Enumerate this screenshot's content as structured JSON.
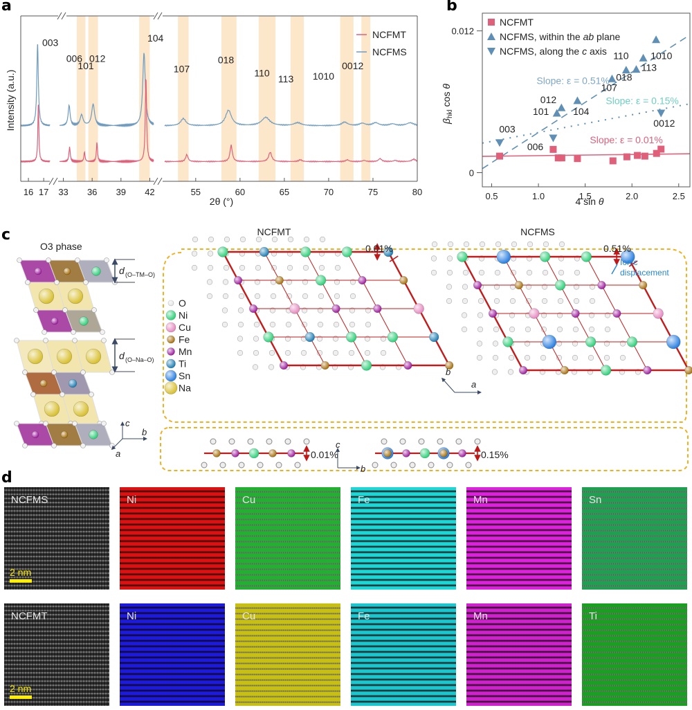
{
  "panels": {
    "a": {
      "letter": "a"
    },
    "b": {
      "letter": "b"
    },
    "c": {
      "letter": "c"
    },
    "d": {
      "letter": "d"
    }
  },
  "chart_data": [
    {
      "id": "a",
      "type": "line",
      "title": "",
      "xlabel": "2θ (°)",
      "ylabel": "Intensity (a.u.)",
      "x_axis_breaks": [
        [
          17.4,
          32.6
        ],
        [
          42.4,
          51.5
        ]
      ],
      "x_segments": [
        {
          "range": [
            15.5,
            17.4
          ],
          "ticks": [
            16,
            17
          ]
        },
        {
          "range": [
            32.6,
            42.4
          ],
          "ticks": [
            33,
            36,
            39,
            42
          ]
        },
        {
          "range": [
            51.5,
            80
          ],
          "ticks": [
            55,
            60,
            65,
            70,
            75,
            80
          ]
        }
      ],
      "legend": {
        "position": "top-right",
        "entries": [
          {
            "name": "NCFMT",
            "color": "#e0607a"
          },
          {
            "name": "NCFMS",
            "color": "#6f9bbf"
          }
        ]
      },
      "highlight_bands": [
        {
          "from": 34.4,
          "to": 35.3
        },
        {
          "from": 35.6,
          "to": 36.6
        },
        {
          "from": 40.9,
          "to": 42.0
        },
        {
          "from": 53.0,
          "to": 54.2
        },
        {
          "from": 57.9,
          "to": 59.6
        },
        {
          "from": 62.1,
          "to": 64.0
        },
        {
          "from": 65.7,
          "to": 67.2
        },
        {
          "from": 71.3,
          "to": 72.8
        },
        {
          "from": 73.7,
          "to": 74.7
        }
      ],
      "series": [
        {
          "name": "NCFMS",
          "color": "#6f9bbf",
          "baseline": 0.62,
          "peaks": [
            {
              "x": 16.6,
              "h": 0.68,
              "w": 0.06
            },
            {
              "x": 33.6,
              "h": 0.17,
              "w": 0.12
            },
            {
              "x": 34.9,
              "h": 0.09,
              "w": 0.18
            },
            {
              "x": 36.1,
              "h": 0.18,
              "w": 0.18
            },
            {
              "x": 41.4,
              "h": 0.61,
              "w": 0.16
            },
            {
              "x": 53.6,
              "h": 0.06,
              "w": 0.35
            },
            {
              "x": 58.7,
              "h": 0.13,
              "w": 0.4
            },
            {
              "x": 62.9,
              "h": 0.07,
              "w": 0.55
            },
            {
              "x": 66.5,
              "h": 0.025,
              "w": 0.5
            },
            {
              "x": 71.8,
              "h": 0.03,
              "w": 0.4
            },
            {
              "x": 73.8,
              "h": 0.02,
              "w": 0.4
            },
            {
              "x": 75.3,
              "h": 0.025,
              "w": 0.4
            },
            {
              "x": 77.2,
              "h": 0.015,
              "w": 0.4
            },
            {
              "x": 79.2,
              "h": 0.025,
              "w": 0.5
            }
          ]
        },
        {
          "name": "NCFMT",
          "color": "#e0607a",
          "baseline": 0.24,
          "peaks": [
            {
              "x": 16.65,
              "h": 0.48,
              "w": 0.04
            },
            {
              "x": 33.65,
              "h": 0.12,
              "w": 0.08
            },
            {
              "x": 35.2,
              "h": 0.08,
              "w": 0.07
            },
            {
              "x": 36.5,
              "h": 0.16,
              "w": 0.07
            },
            {
              "x": 41.6,
              "h": 0.71,
              "w": 0.08
            },
            {
              "x": 54.0,
              "h": 0.06,
              "w": 0.15
            },
            {
              "x": 59.0,
              "h": 0.14,
              "w": 0.15
            },
            {
              "x": 63.4,
              "h": 0.08,
              "w": 0.2
            },
            {
              "x": 66.8,
              "h": 0.015,
              "w": 0.2
            },
            {
              "x": 72.1,
              "h": 0.015,
              "w": 0.2
            },
            {
              "x": 74.0,
              "h": 0.01,
              "w": 0.2
            },
            {
              "x": 75.8,
              "h": 0.025,
              "w": 0.2
            },
            {
              "x": 77.5,
              "h": 0.01,
              "w": 0.2
            },
            {
              "x": 79.6,
              "h": 0.02,
              "w": 0.25
            }
          ]
        }
      ],
      "peak_labels": [
        {
          "text": "003",
          "x": 16.9,
          "y": 0.93
        },
        {
          "text": "006",
          "x": 33.3,
          "y": 0.82
        },
        {
          "text": "101",
          "x": 34.5,
          "y": 0.77
        },
        {
          "text": "012",
          "x": 35.7,
          "y": 0.82
        },
        {
          "text": "104",
          "x": 41.75,
          "y": 0.96
        },
        {
          "text": "107",
          "x": 52.5,
          "y": 0.75
        },
        {
          "text": "018",
          "x": 57.5,
          "y": 0.81
        },
        {
          "text": "110",
          "x": 61.6,
          "y": 0.72
        },
        {
          "text": "113",
          "x": 64.3,
          "y": 0.68
        },
        {
          "text": "1010",
          "x": 68.2,
          "y": 0.7
        },
        {
          "text": "0012",
          "x": 71.5,
          "y": 0.77
        }
      ],
      "ylim": [
        0,
        1
      ]
    },
    {
      "id": "b",
      "type": "scatter",
      "title": "",
      "xlabel": "4 sin θ",
      "ylabel": "β_hkl cos θ",
      "xlim": [
        0.4,
        2.62
      ],
      "ylim": [
        -0.0012,
        0.0135
      ],
      "xticks": [
        0.5,
        1.0,
        1.5,
        2.0,
        2.5
      ],
      "xtick_labels": [
        "0.5",
        "1.0",
        "1.5",
        "2.0",
        "2.5"
      ],
      "yticks": [
        0,
        0.012
      ],
      "ytick_labels": [
        "0",
        "0.012"
      ],
      "legend": {
        "position": "top-left",
        "entries": [
          {
            "name": "NCFMT",
            "marker": "square",
            "color": "#e0607a"
          },
          {
            "name": "NCFMS, within the ab plane",
            "marker": "triangle-up",
            "color": "#5f8fb5"
          },
          {
            "name": "NCFMS, along the c axis",
            "marker": "triangle-down",
            "color": "#5f8fb5"
          }
        ]
      },
      "series": [
        {
          "name": "NCFMT",
          "marker": "square",
          "color": "#e0607a",
          "x": [
            0.585,
            1.158,
            1.212,
            1.25,
            1.417,
            1.797,
            1.946,
            2.058,
            2.138,
            2.263,
            2.311
          ],
          "y": [
            0.0014,
            0.00197,
            0.00125,
            0.00125,
            0.00119,
            0.001,
            0.00134,
            0.00146,
            0.0014,
            0.00163,
            0.00199
          ]
        },
        {
          "name": "NCFMS, within the ab plane",
          "marker": "triangle-up",
          "color": "#5f8fb5",
          "x": [
            1.197,
            1.246,
            1.417,
            1.787,
            1.938,
            2.046,
            2.121,
            2.258
          ],
          "y": [
            0.00504,
            0.0055,
            0.0061,
            0.00795,
            0.00869,
            0.00875,
            0.00971,
            0.01126
          ],
          "labels": [
            "101",
            "012",
            "104",
            "107",
            "018",
            "113",
            "1010",
            ""
          ]
        },
        {
          "name": "NCFMS, along the c axis",
          "marker": "triangle-down",
          "color": "#5f8fb5",
          "x": [
            0.585,
            1.158,
            2.311
          ],
          "y": [
            0.00253,
            0.00293,
            0.00504
          ],
          "labels": [
            "003",
            "006",
            "0012"
          ]
        }
      ],
      "point_labels": [
        {
          "text": "003",
          "x": 0.58,
          "y": 0.0034
        },
        {
          "text": "006",
          "x": 0.88,
          "y": 0.0019
        },
        {
          "text": "101",
          "x": 0.94,
          "y": 0.0049
        },
        {
          "text": "012",
          "x": 1.02,
          "y": 0.0059
        },
        {
          "text": "104",
          "x": 1.37,
          "y": 0.0049
        },
        {
          "text": "107",
          "x": 1.67,
          "y": 0.0069
        },
        {
          "text": "018",
          "x": 1.83,
          "y": 0.0078
        },
        {
          "text": "110",
          "x": 1.8,
          "y": 0.0096
        },
        {
          "text": "113",
          "x": 2.1,
          "y": 0.0086
        },
        {
          "text": "1010",
          "x": 2.2,
          "y": 0.0096
        },
        {
          "text": "0012",
          "x": 2.23,
          "y": 0.0039
        }
      ],
      "fits": [
        {
          "name": "NCFMS ab fit",
          "style": "dashed",
          "color": "#5f8fb5",
          "slope": 0.0051,
          "intercept": -0.0017,
          "label": "Slope: ε = 0.51%",
          "label_color": "#7fa7c8",
          "label_pos": [
            0.98,
            0.0075
          ]
        },
        {
          "name": "NCFMS c fit",
          "style": "dotted",
          "color": "#5f8fb5",
          "slope": 0.0015,
          "intercept": 0.0019,
          "label": "Slope: ε = 0.15%",
          "label_color": "#6fcfc2",
          "label_pos": [
            1.72,
            0.0058
          ]
        },
        {
          "name": "NCFMT fit",
          "style": "solid",
          "color": "#e0607a",
          "slope": 0.0001,
          "intercept": 0.00134,
          "label": "Slope: ε = 0.01%",
          "label_color": "#e0607a",
          "label_pos": [
            1.55,
            0.0025
          ]
        }
      ]
    }
  ],
  "panel_c": {
    "o3_title": "O3 phase",
    "d_tm": "d",
    "d_tm_sub": "(O–TM–O)",
    "d_na": "d",
    "d_na_sub": "(O–Na–O)",
    "axes_left": {
      "c": "c",
      "b": "b",
      "a": "a"
    },
    "legend": [
      {
        "el": "O",
        "color": "#e6e6e6",
        "r": 4
      },
      {
        "el": "Ni",
        "color": "#2fd07a",
        "r": 7
      },
      {
        "el": "Cu",
        "color": "#e58ac0",
        "r": 7
      },
      {
        "el": "Fe",
        "color": "#a8720f",
        "r": 5.5
      },
      {
        "el": "Mn",
        "color": "#a020a0",
        "r": 5.5
      },
      {
        "el": "Ti",
        "color": "#1f7fb5",
        "r": 6.5
      },
      {
        "el": "Sn",
        "color": "#2a7fe0",
        "r": 8
      },
      {
        "el": "Na",
        "color": "#d8c030",
        "r": 9
      }
    ],
    "ncfmt_title": "NCFMT",
    "ncfms_title": "NCFMS",
    "ncfmt_strain": "0.01%",
    "ncfms_strain": "0.51%",
    "ionic_displacement": [
      "Ionic",
      "displacement"
    ],
    "axes_mid": {
      "b": "b",
      "a": "a"
    },
    "side_ncfmt_strain": "0.01%",
    "side_ncfms_strain": "0.15%",
    "axes_side": {
      "c": "c",
      "b": "b"
    },
    "grid_ncfmt": [
      [
        "Ni",
        "Ti",
        "Ni",
        "Ni",
        "Ti"
      ],
      [
        "Mn",
        "Fe",
        "Ni",
        "Mn",
        "Fe"
      ],
      [
        "Mn",
        "Cu",
        "Mn",
        "Mn",
        "Cu"
      ],
      [
        "Ni",
        "Ti",
        "Ni",
        "Ni",
        "Ti"
      ],
      [
        "Mn",
        "Fe",
        "Ni",
        "Mn",
        "Fe"
      ]
    ],
    "grid_ncfms": [
      [
        "Ni",
        "Sn",
        "Ni",
        "Ni",
        "Sn"
      ],
      [
        "Mn",
        "Fe",
        "Ni",
        "Mn",
        "Fe"
      ],
      [
        "Mn",
        "Cu",
        "Mn",
        "Mn",
        "Cu"
      ],
      [
        "Ni",
        "Sn",
        "Ni",
        "Ni",
        "Sn"
      ],
      [
        "Mn",
        "Fe",
        "Ni",
        "Mn",
        "Fe"
      ]
    ],
    "chain_ncfmt": [
      "Fe",
      "Mn",
      "Ni",
      "Fe",
      "Mn"
    ],
    "chain_ncfms": [
      "Fe",
      "Mn",
      "Ni",
      "Fe",
      "Mn"
    ]
  },
  "panel_d": {
    "scale_bar": "2 nm",
    "rows": [
      {
        "tiles": [
          {
            "label": "NCFMS",
            "color": "#d0d0d0",
            "kind": "haadf"
          },
          {
            "label": "Ni",
            "color": "#e01010",
            "kind": "stripe"
          },
          {
            "label": "Cu",
            "color": "#22b030",
            "kind": "noise"
          },
          {
            "label": "Fe",
            "color": "#18d8d8",
            "kind": "stripe"
          },
          {
            "label": "Mn",
            "color": "#e020e0",
            "kind": "stripe"
          },
          {
            "label": "Sn",
            "color": "#1fa050",
            "kind": "noise"
          }
        ]
      },
      {
        "tiles": [
          {
            "label": "NCFMT",
            "color": "#d0d0d0",
            "kind": "haadf"
          },
          {
            "label": "Ni",
            "color": "#1a1ae0",
            "kind": "stripe"
          },
          {
            "label": "Cu",
            "color": "#c8c010",
            "kind": "noise"
          },
          {
            "label": "Fe",
            "color": "#18c8d0",
            "kind": "stripe"
          },
          {
            "label": "Mn",
            "color": "#d020d0",
            "kind": "stripe"
          },
          {
            "label": "Ti",
            "color": "#1aa020",
            "kind": "noise"
          }
        ]
      }
    ]
  }
}
